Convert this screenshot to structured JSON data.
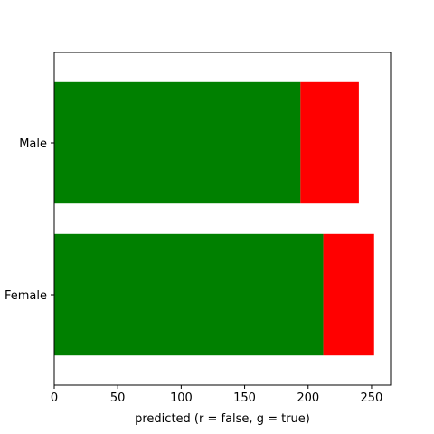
{
  "chart_data": {
    "type": "bar",
    "orientation": "horizontal",
    "stacked": true,
    "categories": [
      "Female",
      "Male"
    ],
    "series": [
      {
        "values": [
          212,
          194
        ],
        "color": "#008000"
      },
      {
        "values": [
          40,
          46
        ],
        "color": "#ff0000"
      }
    ],
    "xlabel": "predicted (r = false, g = true)",
    "ylabel": "",
    "xlim": [
      0,
      265
    ],
    "xticks": [
      "0",
      "50",
      "100",
      "150",
      "200",
      "250"
    ],
    "grid": false,
    "legend": "none"
  }
}
